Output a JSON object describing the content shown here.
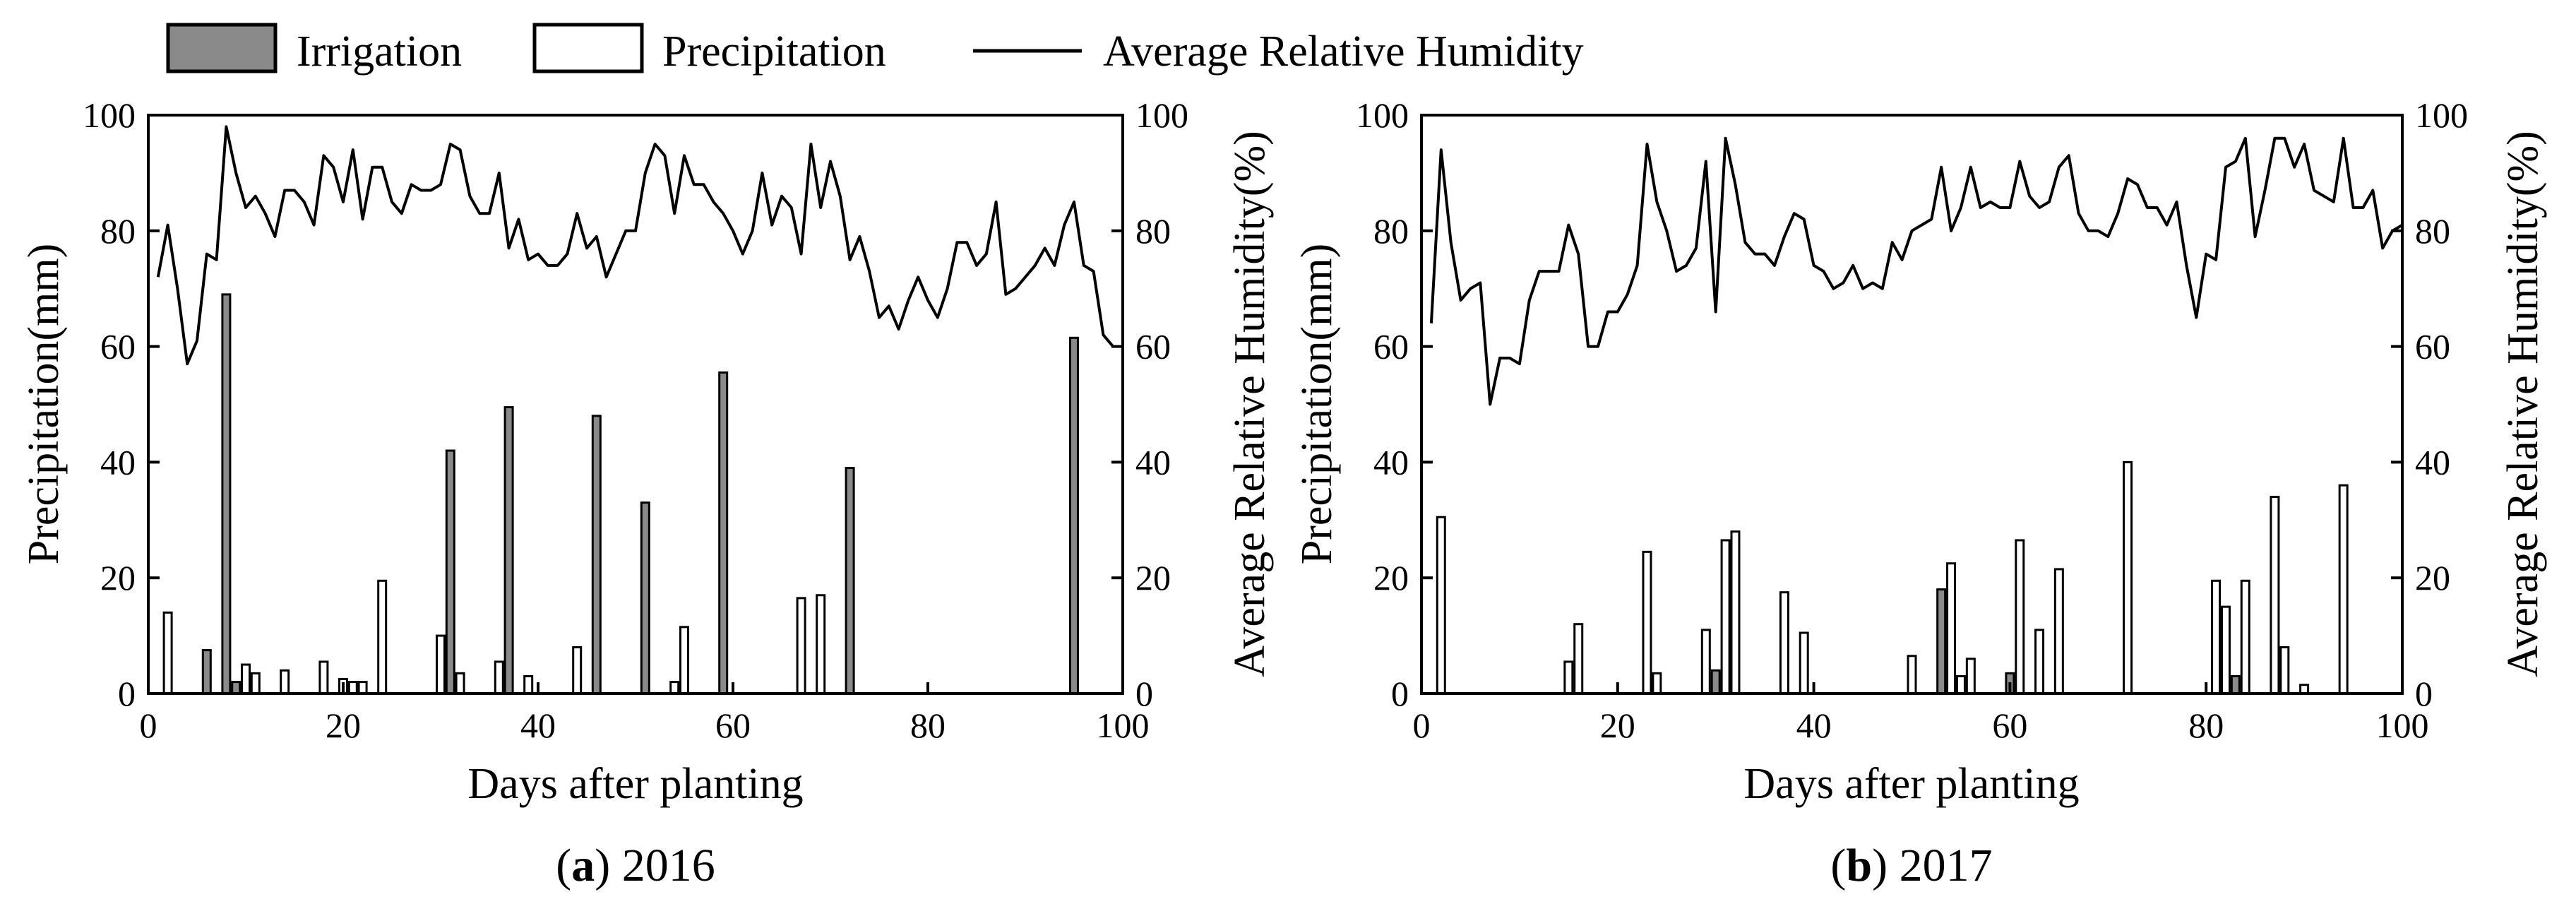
{
  "legend": {
    "irrigation": "Irrigation",
    "precipitation": "Precipitation",
    "humidity": "Average Relative Humidity"
  },
  "colors": {
    "irrigation_fill": "#8a8a8a",
    "precipitation_fill": "#ffffff",
    "stroke": "#000000"
  },
  "chart_data": [
    {
      "type": "bar+line",
      "panel_label": "a",
      "caption_year": "2016",
      "xlabel": "Days after planting",
      "ylabel_left": "Precipitation(mm)",
      "ylabel_right": "Average Relative Humidity(%)",
      "xlim": [
        0,
        100
      ],
      "ylim_left": [
        0,
        100
      ],
      "ylim_right": [
        0,
        100
      ],
      "xticks": [
        0,
        20,
        40,
        60,
        80,
        100
      ],
      "yticks": [
        0,
        20,
        40,
        60,
        80,
        100
      ],
      "irrigation": [
        {
          "day": 6,
          "value": 7.5
        },
        {
          "day": 8,
          "value": 69
        },
        {
          "day": 9,
          "value": 2
        },
        {
          "day": 31,
          "value": 42
        },
        {
          "day": 37,
          "value": 49.5
        },
        {
          "day": 46,
          "value": 48
        },
        {
          "day": 51,
          "value": 33
        },
        {
          "day": 59,
          "value": 55.5
        },
        {
          "day": 72,
          "value": 39
        },
        {
          "day": 95,
          "value": 61.5
        }
      ],
      "precipitation": [
        {
          "day": 2,
          "value": 14
        },
        {
          "day": 10,
          "value": 5
        },
        {
          "day": 11,
          "value": 3.5
        },
        {
          "day": 14,
          "value": 4
        },
        {
          "day": 18,
          "value": 5.5
        },
        {
          "day": 20,
          "value": 2.5
        },
        {
          "day": 21,
          "value": 2
        },
        {
          "day": 22,
          "value": 2
        },
        {
          "day": 24,
          "value": 19.5
        },
        {
          "day": 30,
          "value": 10
        },
        {
          "day": 32,
          "value": 3.5
        },
        {
          "day": 36,
          "value": 5.5
        },
        {
          "day": 39,
          "value": 3
        },
        {
          "day": 44,
          "value": 8
        },
        {
          "day": 54,
          "value": 2
        },
        {
          "day": 55,
          "value": 11.5
        },
        {
          "day": 67,
          "value": 16.5
        },
        {
          "day": 69,
          "value": 17
        }
      ],
      "humidity": [
        {
          "day": 1,
          "value": 72
        },
        {
          "day": 2,
          "value": 81
        },
        {
          "day": 3,
          "value": 70
        },
        {
          "day": 4,
          "value": 57
        },
        {
          "day": 5,
          "value": 61
        },
        {
          "day": 6,
          "value": 76
        },
        {
          "day": 7,
          "value": 75
        },
        {
          "day": 8,
          "value": 98
        },
        {
          "day": 9,
          "value": 90
        },
        {
          "day": 10,
          "value": 84
        },
        {
          "day": 11,
          "value": 86
        },
        {
          "day": 12,
          "value": 83
        },
        {
          "day": 13,
          "value": 79
        },
        {
          "day": 14,
          "value": 87
        },
        {
          "day": 15,
          "value": 87
        },
        {
          "day": 16,
          "value": 85
        },
        {
          "day": 17,
          "value": 81
        },
        {
          "day": 18,
          "value": 93
        },
        {
          "day": 19,
          "value": 91
        },
        {
          "day": 20,
          "value": 85
        },
        {
          "day": 21,
          "value": 94
        },
        {
          "day": 22,
          "value": 82
        },
        {
          "day": 23,
          "value": 91
        },
        {
          "day": 24,
          "value": 91
        },
        {
          "day": 25,
          "value": 85
        },
        {
          "day": 26,
          "value": 83
        },
        {
          "day": 27,
          "value": 88
        },
        {
          "day": 28,
          "value": 87
        },
        {
          "day": 29,
          "value": 87
        },
        {
          "day": 30,
          "value": 88
        },
        {
          "day": 31,
          "value": 95
        },
        {
          "day": 32,
          "value": 94
        },
        {
          "day": 33,
          "value": 86
        },
        {
          "day": 34,
          "value": 83
        },
        {
          "day": 35,
          "value": 83
        },
        {
          "day": 36,
          "value": 90
        },
        {
          "day": 37,
          "value": 77
        },
        {
          "day": 38,
          "value": 82
        },
        {
          "day": 39,
          "value": 75
        },
        {
          "day": 40,
          "value": 76
        },
        {
          "day": 41,
          "value": 74
        },
        {
          "day": 42,
          "value": 74
        },
        {
          "day": 43,
          "value": 76
        },
        {
          "day": 44,
          "value": 83
        },
        {
          "day": 45,
          "value": 77
        },
        {
          "day": 46,
          "value": 79
        },
        {
          "day": 47,
          "value": 72
        },
        {
          "day": 48,
          "value": 76
        },
        {
          "day": 49,
          "value": 80
        },
        {
          "day": 50,
          "value": 80
        },
        {
          "day": 51,
          "value": 90
        },
        {
          "day": 52,
          "value": 95
        },
        {
          "day": 53,
          "value": 93
        },
        {
          "day": 54,
          "value": 83
        },
        {
          "day": 55,
          "value": 93
        },
        {
          "day": 56,
          "value": 88
        },
        {
          "day": 57,
          "value": 88
        },
        {
          "day": 58,
          "value": 85
        },
        {
          "day": 59,
          "value": 83
        },
        {
          "day": 60,
          "value": 80
        },
        {
          "day": 61,
          "value": 76
        },
        {
          "day": 62,
          "value": 80
        },
        {
          "day": 63,
          "value": 90
        },
        {
          "day": 64,
          "value": 81
        },
        {
          "day": 65,
          "value": 86
        },
        {
          "day": 66,
          "value": 84
        },
        {
          "day": 67,
          "value": 76
        },
        {
          "day": 68,
          "value": 95
        },
        {
          "day": 69,
          "value": 84
        },
        {
          "day": 70,
          "value": 92
        },
        {
          "day": 71,
          "value": 86
        },
        {
          "day": 72,
          "value": 75
        },
        {
          "day": 73,
          "value": 79
        },
        {
          "day": 74,
          "value": 73
        },
        {
          "day": 75,
          "value": 65
        },
        {
          "day": 76,
          "value": 67
        },
        {
          "day": 77,
          "value": 63
        },
        {
          "day": 78,
          "value": 68
        },
        {
          "day": 79,
          "value": 72
        },
        {
          "day": 80,
          "value": 68
        },
        {
          "day": 81,
          "value": 65
        },
        {
          "day": 82,
          "value": 70
        },
        {
          "day": 83,
          "value": 78
        },
        {
          "day": 84,
          "value": 78
        },
        {
          "day": 85,
          "value": 74
        },
        {
          "day": 86,
          "value": 76
        },
        {
          "day": 87,
          "value": 85
        },
        {
          "day": 88,
          "value": 69
        },
        {
          "day": 89,
          "value": 70
        },
        {
          "day": 90,
          "value": 72
        },
        {
          "day": 91,
          "value": 74
        },
        {
          "day": 92,
          "value": 77
        },
        {
          "day": 93,
          "value": 74
        },
        {
          "day": 94,
          "value": 81
        },
        {
          "day": 95,
          "value": 85
        },
        {
          "day": 96,
          "value": 74
        },
        {
          "day": 97,
          "value": 73
        },
        {
          "day": 98,
          "value": 62
        },
        {
          "day": 99,
          "value": 60
        }
      ]
    },
    {
      "type": "bar+line",
      "panel_label": "b",
      "caption_year": "2017",
      "xlabel": "Days after planting",
      "ylabel_left": "Precipitation(mm)",
      "ylabel_right": "Average Relative Humidity(%)",
      "xlim": [
        0,
        100
      ],
      "ylim_left": [
        0,
        100
      ],
      "ylim_right": [
        0,
        100
      ],
      "xticks": [
        0,
        20,
        40,
        60,
        80,
        100
      ],
      "yticks": [
        0,
        20,
        40,
        60,
        80,
        100
      ],
      "irrigation": [
        {
          "day": 30,
          "value": 4
        },
        {
          "day": 53,
          "value": 18
        },
        {
          "day": 60,
          "value": 3.5
        },
        {
          "day": 83,
          "value": 3
        }
      ],
      "precipitation": [
        {
          "day": 2,
          "value": 30.5
        },
        {
          "day": 15,
          "value": 5.5
        },
        {
          "day": 16,
          "value": 12
        },
        {
          "day": 23,
          "value": 24.5
        },
        {
          "day": 24,
          "value": 3.5
        },
        {
          "day": 29,
          "value": 11
        },
        {
          "day": 31,
          "value": 26.5
        },
        {
          "day": 32,
          "value": 28
        },
        {
          "day": 37,
          "value": 17.5
        },
        {
          "day": 39,
          "value": 10.5
        },
        {
          "day": 50,
          "value": 6.5
        },
        {
          "day": 54,
          "value": 22.5
        },
        {
          "day": 55,
          "value": 3
        },
        {
          "day": 56,
          "value": 6
        },
        {
          "day": 61,
          "value": 26.5
        },
        {
          "day": 63,
          "value": 11
        },
        {
          "day": 65,
          "value": 21.5
        },
        {
          "day": 72,
          "value": 40
        },
        {
          "day": 81,
          "value": 19.5
        },
        {
          "day": 82,
          "value": 15
        },
        {
          "day": 84,
          "value": 19.5
        },
        {
          "day": 87,
          "value": 34
        },
        {
          "day": 88,
          "value": 8
        },
        {
          "day": 90,
          "value": 1.5
        },
        {
          "day": 94,
          "value": 36
        }
      ],
      "humidity": [
        {
          "day": 1,
          "value": 64
        },
        {
          "day": 2,
          "value": 94
        },
        {
          "day": 3,
          "value": 78
        },
        {
          "day": 4,
          "value": 68
        },
        {
          "day": 5,
          "value": 70
        },
        {
          "day": 6,
          "value": 71
        },
        {
          "day": 7,
          "value": 50
        },
        {
          "day": 8,
          "value": 58
        },
        {
          "day": 9,
          "value": 58
        },
        {
          "day": 10,
          "value": 57
        },
        {
          "day": 11,
          "value": 68
        },
        {
          "day": 12,
          "value": 73
        },
        {
          "day": 13,
          "value": 73
        },
        {
          "day": 14,
          "value": 73
        },
        {
          "day": 15,
          "value": 81
        },
        {
          "day": 16,
          "value": 76
        },
        {
          "day": 17,
          "value": 60
        },
        {
          "day": 18,
          "value": 60
        },
        {
          "day": 19,
          "value": 66
        },
        {
          "day": 20,
          "value": 66
        },
        {
          "day": 21,
          "value": 69
        },
        {
          "day": 22,
          "value": 74
        },
        {
          "day": 23,
          "value": 95
        },
        {
          "day": 24,
          "value": 85
        },
        {
          "day": 25,
          "value": 80
        },
        {
          "day": 26,
          "value": 73
        },
        {
          "day": 27,
          "value": 74
        },
        {
          "day": 28,
          "value": 77
        },
        {
          "day": 29,
          "value": 92
        },
        {
          "day": 30,
          "value": 66
        },
        {
          "day": 31,
          "value": 96
        },
        {
          "day": 32,
          "value": 88
        },
        {
          "day": 33,
          "value": 78
        },
        {
          "day": 34,
          "value": 76
        },
        {
          "day": 35,
          "value": 76
        },
        {
          "day": 36,
          "value": 74
        },
        {
          "day": 37,
          "value": 79
        },
        {
          "day": 38,
          "value": 83
        },
        {
          "day": 39,
          "value": 82
        },
        {
          "day": 40,
          "value": 74
        },
        {
          "day": 41,
          "value": 73
        },
        {
          "day": 42,
          "value": 70
        },
        {
          "day": 43,
          "value": 71
        },
        {
          "day": 44,
          "value": 74
        },
        {
          "day": 45,
          "value": 70
        },
        {
          "day": 46,
          "value": 71
        },
        {
          "day": 47,
          "value": 70
        },
        {
          "day": 48,
          "value": 78
        },
        {
          "day": 49,
          "value": 75
        },
        {
          "day": 50,
          "value": 80
        },
        {
          "day": 51,
          "value": 81
        },
        {
          "day": 52,
          "value": 82
        },
        {
          "day": 53,
          "value": 91
        },
        {
          "day": 54,
          "value": 80
        },
        {
          "day": 55,
          "value": 84
        },
        {
          "day": 56,
          "value": 91
        },
        {
          "day": 57,
          "value": 84
        },
        {
          "day": 58,
          "value": 85
        },
        {
          "day": 59,
          "value": 84
        },
        {
          "day": 60,
          "value": 84
        },
        {
          "day": 61,
          "value": 92
        },
        {
          "day": 62,
          "value": 86
        },
        {
          "day": 63,
          "value": 84
        },
        {
          "day": 64,
          "value": 85
        },
        {
          "day": 65,
          "value": 91
        },
        {
          "day": 66,
          "value": 93
        },
        {
          "day": 67,
          "value": 83
        },
        {
          "day": 68,
          "value": 80
        },
        {
          "day": 69,
          "value": 80
        },
        {
          "day": 70,
          "value": 79
        },
        {
          "day": 71,
          "value": 83
        },
        {
          "day": 72,
          "value": 89
        },
        {
          "day": 73,
          "value": 88
        },
        {
          "day": 74,
          "value": 84
        },
        {
          "day": 75,
          "value": 84
        },
        {
          "day": 76,
          "value": 81
        },
        {
          "day": 77,
          "value": 85
        },
        {
          "day": 78,
          "value": 74
        },
        {
          "day": 79,
          "value": 65
        },
        {
          "day": 80,
          "value": 76
        },
        {
          "day": 81,
          "value": 75
        },
        {
          "day": 82,
          "value": 91
        },
        {
          "day": 83,
          "value": 92
        },
        {
          "day": 84,
          "value": 96
        },
        {
          "day": 85,
          "value": 79
        },
        {
          "day": 86,
          "value": 87
        },
        {
          "day": 87,
          "value": 96
        },
        {
          "day": 88,
          "value": 96
        },
        {
          "day": 89,
          "value": 91
        },
        {
          "day": 90,
          "value": 95
        },
        {
          "day": 91,
          "value": 87
        },
        {
          "day": 92,
          "value": 86
        },
        {
          "day": 93,
          "value": 85
        },
        {
          "day": 94,
          "value": 96
        },
        {
          "day": 95,
          "value": 84
        },
        {
          "day": 96,
          "value": 84
        },
        {
          "day": 97,
          "value": 87
        },
        {
          "day": 98,
          "value": 77
        },
        {
          "day": 99,
          "value": 80
        },
        {
          "day": 100,
          "value": 81
        }
      ]
    }
  ]
}
